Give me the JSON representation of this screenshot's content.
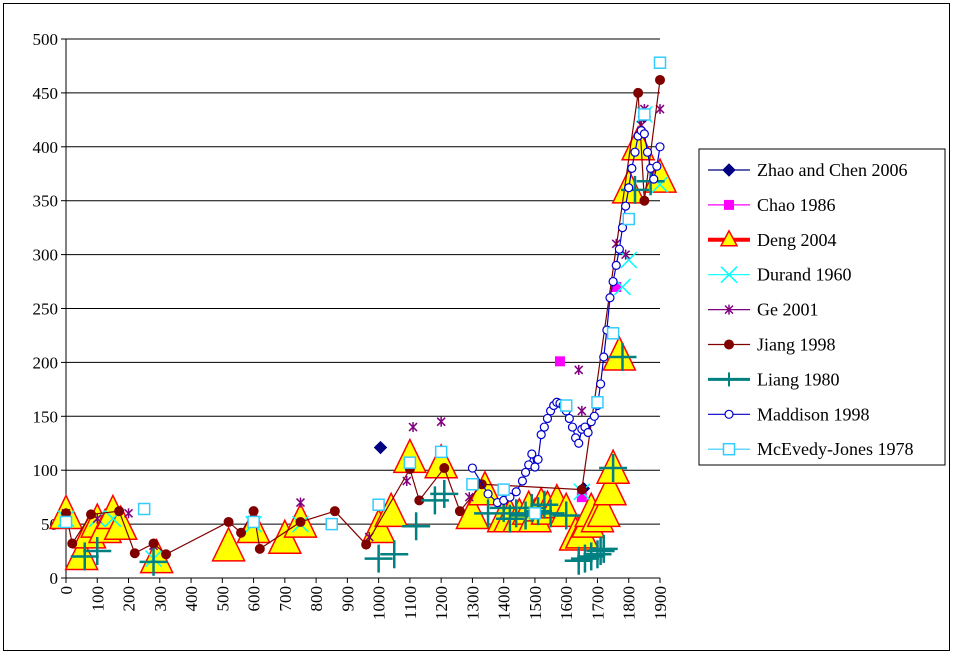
{
  "chart_data": {
    "type": "scatter",
    "title": "",
    "xlabel": "",
    "ylabel": "",
    "xlim": [
      0,
      1900
    ],
    "ylim": [
      0,
      500
    ],
    "x_ticks": [
      0,
      100,
      200,
      300,
      400,
      500,
      600,
      700,
      800,
      900,
      1000,
      1100,
      1200,
      1300,
      1400,
      1500,
      1600,
      1700,
      1800,
      1900
    ],
    "y_ticks": [
      0,
      50,
      100,
      150,
      200,
      250,
      300,
      350,
      400,
      450,
      500
    ],
    "grid": "horizontal",
    "legend_position": "right",
    "series": [
      {
        "name": "Zhao and Chen 2006",
        "marker": "diamond",
        "color": "#000080",
        "line": false,
        "points": [
          [
            0,
            60
          ],
          [
            1006,
            121
          ],
          [
            1655,
            83
          ],
          [
            1850,
            428
          ]
        ]
      },
      {
        "name": "Chao 1986",
        "marker": "square",
        "color": "#ff00ff",
        "line": false,
        "points": [
          [
            0,
            58
          ],
          [
            1580,
            201
          ],
          [
            1650,
            75
          ],
          [
            1760,
            270
          ],
          [
            1850,
            430
          ]
        ]
      },
      {
        "name": "Deng 2004",
        "marker": "triangle",
        "color": "#ff0000",
        "fill": "#ffff00",
        "line": false,
        "points": [
          [
            0,
            58
          ],
          [
            50,
            20
          ],
          [
            75,
            40
          ],
          [
            100,
            50
          ],
          [
            125,
            45
          ],
          [
            150,
            58
          ],
          [
            175,
            48
          ],
          [
            290,
            17
          ],
          [
            520,
            28
          ],
          [
            600,
            45
          ],
          [
            700,
            35
          ],
          [
            750,
            50
          ],
          [
            1000,
            45
          ],
          [
            1040,
            60
          ],
          [
            1100,
            110
          ],
          [
            1200,
            105
          ],
          [
            1300,
            58
          ],
          [
            1340,
            80
          ],
          [
            1400,
            55
          ],
          [
            1420,
            55
          ],
          [
            1450,
            55
          ],
          [
            1480,
            62
          ],
          [
            1500,
            55
          ],
          [
            1520,
            65
          ],
          [
            1540,
            62
          ],
          [
            1570,
            68
          ],
          [
            1600,
            60
          ],
          [
            1630,
            38
          ],
          [
            1650,
            40
          ],
          [
            1670,
            50
          ],
          [
            1680,
            60
          ],
          [
            1700,
            55
          ],
          [
            1720,
            60
          ],
          [
            1740,
            80
          ],
          [
            1750,
            100
          ],
          [
            1770,
            205
          ],
          [
            1800,
            360
          ],
          [
            1830,
            400
          ],
          [
            1900,
            370
          ]
        ]
      },
      {
        "name": "Durand 1960",
        "marker": "x",
        "color": "#00ffff",
        "line": false,
        "points": [
          [
            0,
            55
          ],
          [
            100,
            55
          ],
          [
            150,
            55
          ],
          [
            280,
            18
          ],
          [
            600,
            50
          ],
          [
            750,
            50
          ],
          [
            1650,
            80
          ],
          [
            1780,
            270
          ],
          [
            1800,
            295
          ],
          [
            1850,
            430
          ],
          [
            1900,
            365
          ]
        ]
      },
      {
        "name": "Ge 2001",
        "marker": "star",
        "color": "#800080",
        "line": false,
        "points": [
          [
            0,
            60
          ],
          [
            100,
            55
          ],
          [
            200,
            60
          ],
          [
            280,
            30
          ],
          [
            750,
            70
          ],
          [
            970,
            38
          ],
          [
            1090,
            90
          ],
          [
            1110,
            140
          ],
          [
            1200,
            145
          ],
          [
            1290,
            75
          ],
          [
            1640,
            193
          ],
          [
            1650,
            155
          ],
          [
            1760,
            310
          ],
          [
            1790,
            300
          ],
          [
            1840,
            420
          ],
          [
            1850,
            435
          ],
          [
            1900,
            435
          ]
        ]
      },
      {
        "name": "Jiang 1998",
        "marker": "circle",
        "color": "#800000",
        "fill": "#800000",
        "line": true,
        "points": [
          [
            0,
            60
          ],
          [
            20,
            32
          ],
          [
            80,
            59
          ],
          [
            170,
            62
          ],
          [
            220,
            23
          ],
          [
            280,
            32
          ],
          [
            320,
            22
          ],
          [
            520,
            52
          ],
          [
            560,
            42
          ],
          [
            600,
            62
          ],
          [
            620,
            27
          ],
          [
            750,
            52
          ],
          [
            860,
            62
          ],
          [
            960,
            31
          ],
          [
            1100,
            101
          ],
          [
            1130,
            72
          ],
          [
            1210,
            102
          ],
          [
            1260,
            62
          ],
          [
            1330,
            87
          ],
          [
            1650,
            82
          ],
          [
            1830,
            450
          ],
          [
            1850,
            350
          ],
          [
            1900,
            462
          ]
        ]
      },
      {
        "name": "Liang 1980",
        "marker": "plus",
        "color": "#008080",
        "line": false,
        "points": [
          [
            60,
            20
          ],
          [
            100,
            25
          ],
          [
            280,
            15
          ],
          [
            1000,
            18
          ],
          [
            1050,
            22
          ],
          [
            1120,
            48
          ],
          [
            1180,
            72
          ],
          [
            1210,
            78
          ],
          [
            1350,
            60
          ],
          [
            1400,
            65
          ],
          [
            1420,
            55
          ],
          [
            1440,
            60
          ],
          [
            1470,
            58
          ],
          [
            1490,
            65
          ],
          [
            1510,
            62
          ],
          [
            1530,
            68
          ],
          [
            1550,
            60
          ],
          [
            1600,
            58
          ],
          [
            1640,
            16
          ],
          [
            1660,
            18
          ],
          [
            1680,
            20
          ],
          [
            1700,
            22
          ],
          [
            1710,
            25
          ],
          [
            1720,
            27
          ],
          [
            1750,
            102
          ],
          [
            1780,
            205
          ],
          [
            1820,
            360
          ],
          [
            1870,
            368
          ]
        ]
      },
      {
        "name": "Maddison 1998",
        "marker": "circle-open",
        "color": "#0000cc",
        "line": true,
        "points": [
          [
            1300,
            102
          ],
          [
            1350,
            78
          ],
          [
            1380,
            70
          ],
          [
            1400,
            72
          ],
          [
            1420,
            75
          ],
          [
            1440,
            80
          ],
          [
            1460,
            90
          ],
          [
            1470,
            98
          ],
          [
            1480,
            105
          ],
          [
            1490,
            115
          ],
          [
            1500,
            103
          ],
          [
            1510,
            110
          ],
          [
            1520,
            133
          ],
          [
            1530,
            140
          ],
          [
            1540,
            148
          ],
          [
            1550,
            155
          ],
          [
            1560,
            160
          ],
          [
            1570,
            163
          ],
          [
            1580,
            162
          ],
          [
            1590,
            160
          ],
          [
            1600,
            155
          ],
          [
            1610,
            148
          ],
          [
            1620,
            140
          ],
          [
            1630,
            130
          ],
          [
            1640,
            125
          ],
          [
            1650,
            138
          ],
          [
            1660,
            140
          ],
          [
            1670,
            135
          ],
          [
            1680,
            145
          ],
          [
            1690,
            150
          ],
          [
            1700,
            160
          ],
          [
            1710,
            180
          ],
          [
            1720,
            205
          ],
          [
            1730,
            230
          ],
          [
            1740,
            260
          ],
          [
            1750,
            275
          ],
          [
            1760,
            290
          ],
          [
            1770,
            305
          ],
          [
            1780,
            325
          ],
          [
            1790,
            345
          ],
          [
            1800,
            362
          ],
          [
            1810,
            380
          ],
          [
            1820,
            395
          ],
          [
            1830,
            410
          ],
          [
            1840,
            415
          ],
          [
            1850,
            412
          ],
          [
            1860,
            395
          ],
          [
            1870,
            380
          ],
          [
            1880,
            370
          ],
          [
            1890,
            382
          ],
          [
            1900,
            400
          ]
        ]
      },
      {
        "name": "McEvedy-Jones 1978",
        "marker": "square-open",
        "color": "#33ccff",
        "line": false,
        "points": [
          [
            0,
            52
          ],
          [
            250,
            64
          ],
          [
            600,
            52
          ],
          [
            850,
            50
          ],
          [
            1000,
            68
          ],
          [
            1100,
            107
          ],
          [
            1200,
            117
          ],
          [
            1300,
            87
          ],
          [
            1400,
            82
          ],
          [
            1500,
            60
          ],
          [
            1600,
            160
          ],
          [
            1700,
            163
          ],
          [
            1750,
            227
          ],
          [
            1800,
            333
          ],
          [
            1850,
            430
          ],
          [
            1900,
            478
          ]
        ]
      }
    ]
  }
}
